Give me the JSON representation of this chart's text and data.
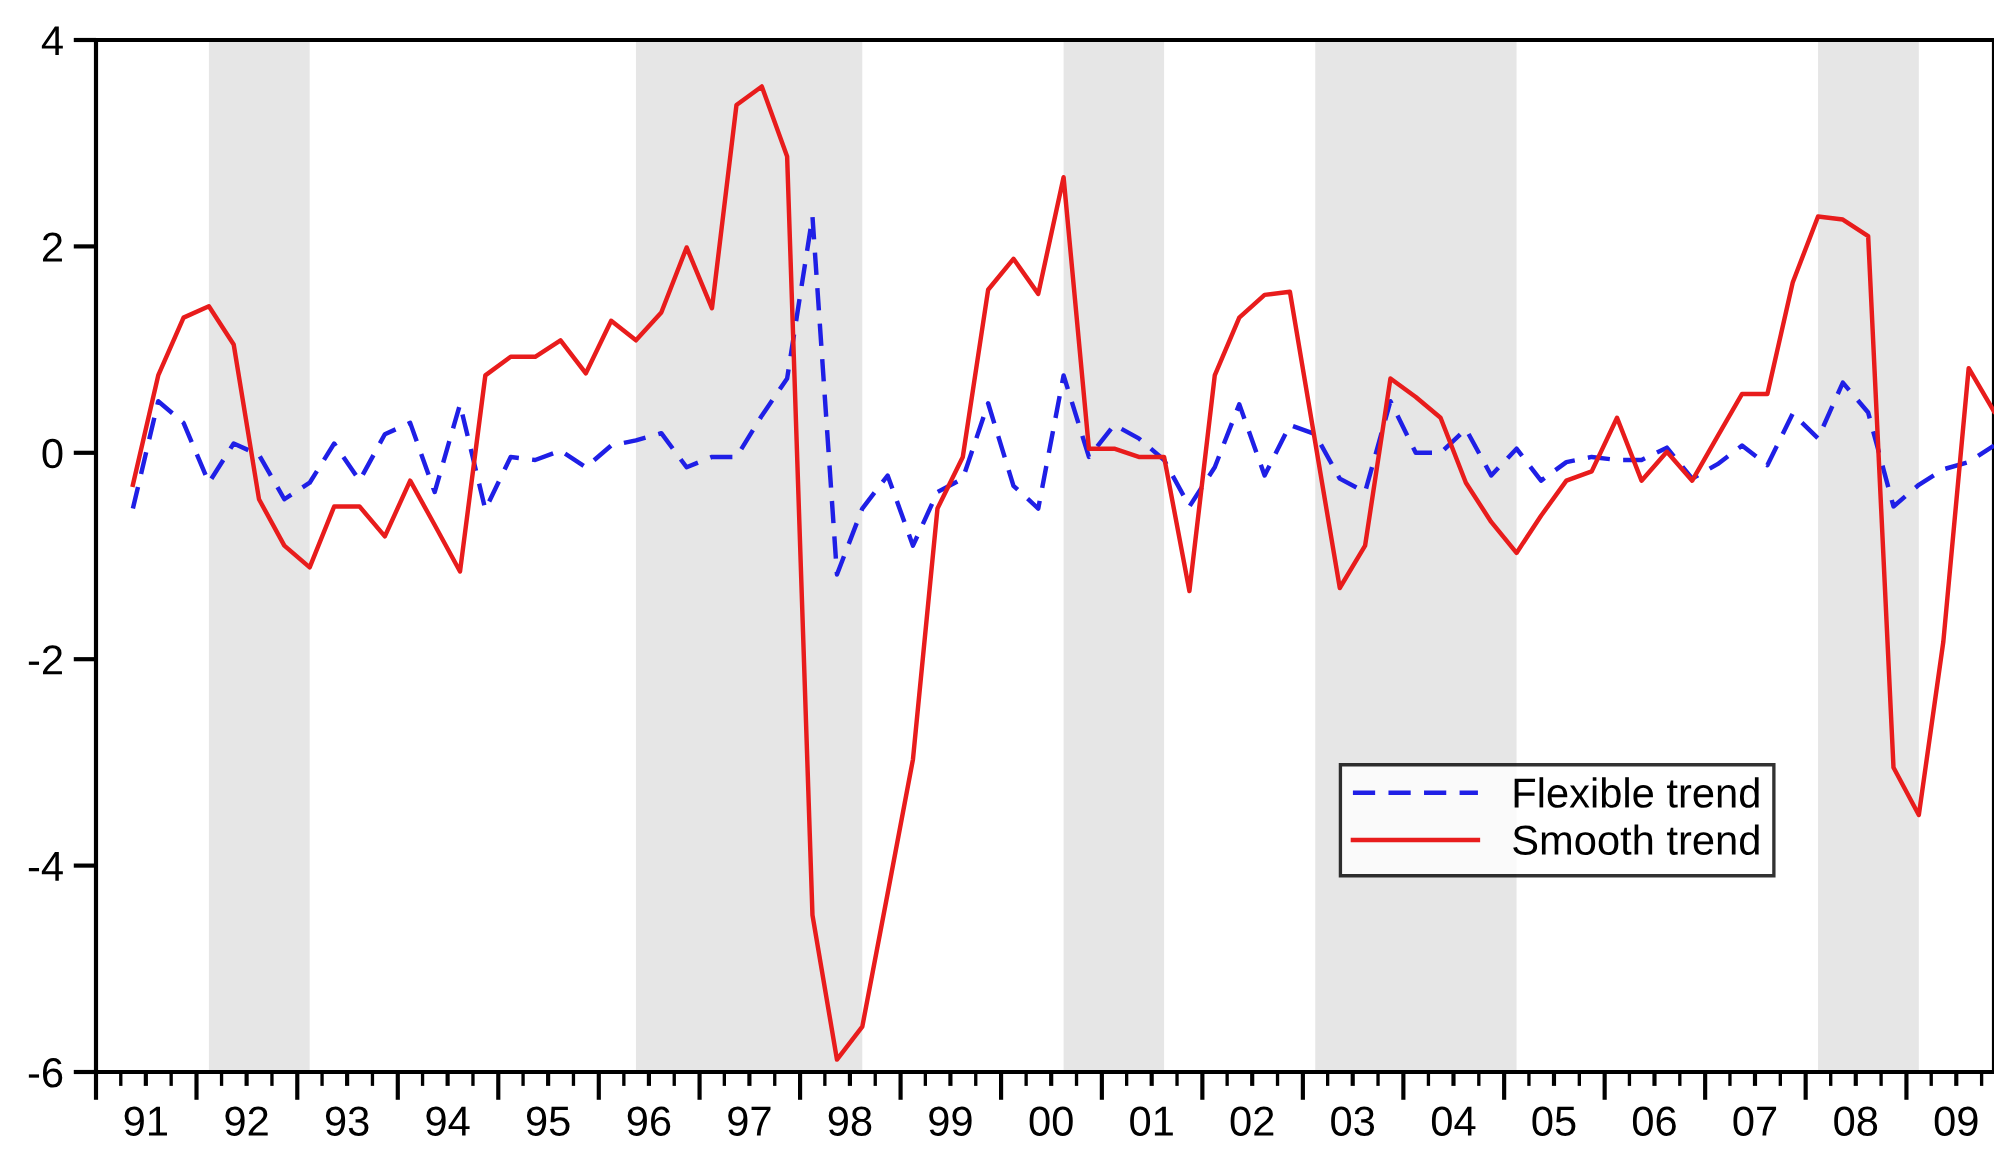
{
  "chart_data": {
    "type": "line",
    "x": [
      "1991-05-15",
      "1991-08-15",
      "1991-11-15",
      "1992-02-15",
      "1992-05-15",
      "1992-08-15",
      "1992-11-15",
      "1993-02-15",
      "1993-05-15",
      "1993-08-15",
      "1993-11-15",
      "1994-02-15",
      "1994-05-15",
      "1994-08-15",
      "1994-11-15",
      "1995-02-15",
      "1995-05-15",
      "1995-08-15",
      "1995-11-15",
      "1996-02-15",
      "1996-05-15",
      "1996-08-15",
      "1996-11-15",
      "1997-02-15",
      "1997-05-15",
      "1997-08-15",
      "1997-11-15",
      "1998-02-15",
      "1998-05-15",
      "1998-08-15",
      "1998-11-15",
      "1999-02-15",
      "1999-05-15",
      "1999-08-15",
      "1999-11-15",
      "2000-02-15",
      "2000-05-15",
      "2000-08-15",
      "2000-11-15",
      "2001-02-15",
      "2001-05-15",
      "2001-08-15",
      "2001-11-15",
      "2002-02-15",
      "2002-05-15",
      "2002-08-15",
      "2002-11-15",
      "2003-02-15",
      "2003-05-15",
      "2003-08-15",
      "2003-11-15",
      "2004-02-15",
      "2004-05-15",
      "2004-08-15",
      "2004-11-15",
      "2005-02-15",
      "2005-05-15",
      "2005-08-15",
      "2005-11-15",
      "2006-02-15",
      "2006-05-15",
      "2006-08-15",
      "2006-11-15",
      "2007-02-15",
      "2007-05-15",
      "2007-08-15",
      "2007-11-15",
      "2008-02-15",
      "2008-05-15",
      "2008-08-15",
      "2008-11-15",
      "2009-02-15",
      "2009-05-15",
      "2009-08-15",
      "2009-11-15"
    ],
    "series": [
      {
        "name": "Flexible trend",
        "color": "#1f1fe6",
        "line_style": "dashed",
        "values": [
          -0.54,
          0.5,
          0.29,
          -0.29,
          0.09,
          -0.02,
          -0.45,
          -0.29,
          0.09,
          -0.27,
          0.18,
          0.29,
          -0.38,
          0.47,
          -0.55,
          -0.04,
          -0.07,
          0.02,
          -0.14,
          0.07,
          0.12,
          0.19,
          -0.14,
          -0.04,
          -0.04,
          0.36,
          0.72,
          2.29,
          -1.18,
          -0.54,
          -0.22,
          -0.9,
          -0.38,
          -0.25,
          0.48,
          -0.32,
          -0.54,
          0.75,
          -0.04,
          0.27,
          0.14,
          -0.07,
          -0.52,
          -0.14,
          0.47,
          -0.22,
          0.27,
          0.18,
          -0.25,
          -0.38,
          0.5,
          0.0,
          0.0,
          0.23,
          -0.22,
          0.04,
          -0.27,
          -0.09,
          -0.04,
          -0.07,
          -0.07,
          0.05,
          -0.25,
          -0.11,
          0.07,
          -0.12,
          0.38,
          0.14,
          0.68,
          0.39,
          -0.52,
          -0.31,
          -0.16,
          -0.09,
          0.07
        ]
      },
      {
        "name": "Smooth trend",
        "color": "#e81c1c",
        "line_style": "solid",
        "values": [
          -0.31,
          0.75,
          1.31,
          1.42,
          1.05,
          -0.45,
          -0.9,
          -1.11,
          -0.52,
          -0.52,
          -0.81,
          -0.27,
          -0.7,
          -1.15,
          0.75,
          0.93,
          0.93,
          1.09,
          0.77,
          1.28,
          1.09,
          1.36,
          1.99,
          1.4,
          3.37,
          3.55,
          2.87,
          -4.48,
          -5.88,
          -5.56,
          -4.27,
          -2.97,
          -0.54,
          -0.04,
          1.58,
          1.88,
          1.54,
          2.67,
          0.04,
          0.04,
          -0.04,
          -0.04,
          -1.34,
          0.75,
          1.31,
          1.53,
          1.56,
          0.1,
          -1.31,
          -0.9,
          0.72,
          0.54,
          0.34,
          -0.29,
          -0.67,
          -0.97,
          -0.61,
          -0.27,
          -0.18,
          0.34,
          -0.27,
          0.01,
          -0.27,
          0.16,
          0.57,
          0.57,
          1.65,
          2.29,
          2.26,
          2.1,
          -3.05,
          -3.51,
          -1.83,
          0.82,
          0.4
        ]
      }
    ],
    "xlim": [
      "1991-01-01",
      "2009-11-15"
    ],
    "xticks": [
      {
        "value": "1991-01-01",
        "label": null
      },
      {
        "value": "1991-07-01",
        "label": "91"
      },
      {
        "value": "1992-01-01",
        "label": null
      },
      {
        "value": "1992-07-01",
        "label": "92"
      },
      {
        "value": "1993-01-01",
        "label": null
      },
      {
        "value": "1993-07-01",
        "label": "93"
      },
      {
        "value": "1994-01-01",
        "label": null
      },
      {
        "value": "1994-07-01",
        "label": "94"
      },
      {
        "value": "1995-01-01",
        "label": null
      },
      {
        "value": "1995-07-01",
        "label": "95"
      },
      {
        "value": "1996-01-01",
        "label": null
      },
      {
        "value": "1996-07-01",
        "label": "96"
      },
      {
        "value": "1997-01-01",
        "label": null
      },
      {
        "value": "1997-07-01",
        "label": "97"
      },
      {
        "value": "1998-01-01",
        "label": null
      },
      {
        "value": "1998-07-01",
        "label": "98"
      },
      {
        "value": "1999-01-01",
        "label": null
      },
      {
        "value": "1999-07-01",
        "label": "99"
      },
      {
        "value": "2000-01-01",
        "label": null
      },
      {
        "value": "2000-07-01",
        "label": "00"
      },
      {
        "value": "2001-01-01",
        "label": null
      },
      {
        "value": "2001-07-01",
        "label": "01"
      },
      {
        "value": "2002-01-01",
        "label": null
      },
      {
        "value": "2002-07-01",
        "label": "02"
      },
      {
        "value": "2003-01-01",
        "label": null
      },
      {
        "value": "2003-07-01",
        "label": "03"
      },
      {
        "value": "2004-01-01",
        "label": null
      },
      {
        "value": "2004-07-01",
        "label": "04"
      },
      {
        "value": "2005-01-01",
        "label": null
      },
      {
        "value": "2005-07-01",
        "label": "05"
      },
      {
        "value": "2006-01-01",
        "label": null
      },
      {
        "value": "2006-07-01",
        "label": "06"
      },
      {
        "value": "2007-01-01",
        "label": null
      },
      {
        "value": "2007-07-01",
        "label": "07"
      },
      {
        "value": "2008-01-01",
        "label": null
      },
      {
        "value": "2008-07-01",
        "label": "08"
      },
      {
        "value": "2009-01-01",
        "label": null
      },
      {
        "value": "2009-07-01",
        "label": "09"
      }
    ],
    "ylim": [
      -6,
      4
    ],
    "yticks": [
      -6,
      -4,
      -2,
      0,
      2,
      4
    ],
    "bands": [
      {
        "axis": "x",
        "from": "1992-02-15",
        "to": "1993-02-15",
        "color": "#e6e6e6"
      },
      {
        "axis": "x",
        "from": "1996-05-15",
        "to": "1998-08-15",
        "color": "#e6e6e6"
      },
      {
        "axis": "x",
        "from": "2000-08-15",
        "to": "2001-08-15",
        "color": "#e6e6e6"
      },
      {
        "axis": "x",
        "from": "2003-02-15",
        "to": "2005-02-15",
        "color": "#e6e6e6"
      },
      {
        "axis": "x",
        "from": "2008-02-15",
        "to": "2009-02-15",
        "color": "#e6e6e6"
      }
    ],
    "legend": "bottom right",
    "grid": false
  }
}
